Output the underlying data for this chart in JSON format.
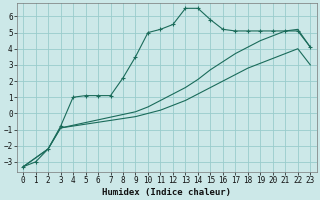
{
  "xlabel": "Humidex (Indice chaleur)",
  "ylabel": "",
  "bg_color": "#cce8e8",
  "grid_color": "#99cccc",
  "line_color": "#1a6b5a",
  "xlim": [
    -0.5,
    23.5
  ],
  "ylim": [
    -3.6,
    6.8
  ],
  "xticks": [
    0,
    1,
    2,
    3,
    4,
    5,
    6,
    7,
    8,
    9,
    10,
    11,
    12,
    13,
    14,
    15,
    16,
    17,
    18,
    19,
    20,
    21,
    22,
    23
  ],
  "yticks": [
    -3,
    -2,
    -1,
    0,
    1,
    2,
    3,
    4,
    5,
    6
  ],
  "line1_x": [
    0,
    1,
    2,
    3,
    4,
    5,
    6,
    7,
    8,
    9,
    10,
    11,
    12,
    13,
    14,
    15,
    16,
    17,
    18,
    19,
    20,
    21,
    22,
    23
  ],
  "line1_y": [
    -3.3,
    -3.0,
    -2.2,
    -0.8,
    1.0,
    1.1,
    1.1,
    1.1,
    2.2,
    3.5,
    5.0,
    5.2,
    5.5,
    6.5,
    6.5,
    5.8,
    5.2,
    5.1,
    5.1,
    5.1,
    5.1,
    5.1,
    5.1,
    4.1
  ],
  "line2_x": [
    0,
    2,
    3,
    9,
    10,
    11,
    12,
    13,
    14,
    15,
    16,
    17,
    18,
    19,
    20,
    21,
    22,
    23
  ],
  "line2_y": [
    -3.3,
    -2.2,
    -0.9,
    -0.2,
    0.0,
    0.2,
    0.5,
    0.8,
    1.2,
    1.6,
    2.0,
    2.4,
    2.8,
    3.1,
    3.4,
    3.7,
    4.0,
    3.0
  ],
  "line3_x": [
    0,
    2,
    3,
    9,
    10,
    11,
    12,
    13,
    14,
    15,
    16,
    17,
    18,
    19,
    20,
    21,
    22,
    23
  ],
  "line3_y": [
    -3.3,
    -2.2,
    -0.9,
    0.1,
    0.4,
    0.8,
    1.2,
    1.6,
    2.1,
    2.7,
    3.2,
    3.7,
    4.1,
    4.5,
    4.8,
    5.1,
    5.2,
    4.1
  ]
}
